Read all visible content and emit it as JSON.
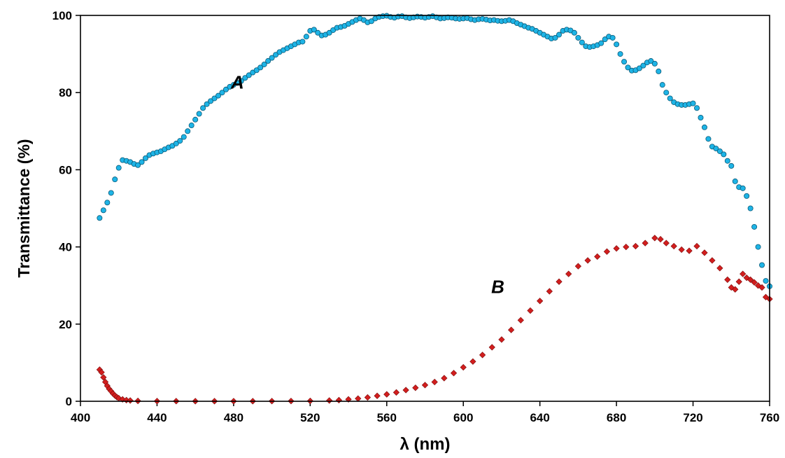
{
  "chart_data": {
    "type": "scatter",
    "title": "",
    "xlabel": "λ (nm)",
    "ylabel": "Transmittance (%)",
    "xlim": [
      400,
      760
    ],
    "ylim": [
      0,
      100
    ],
    "x_ticks": [
      "400",
      "440",
      "480",
      "520",
      "560",
      "600",
      "640",
      "680",
      "720",
      "760"
    ],
    "y_ticks": [
      "0",
      "20",
      "40",
      "60",
      "80",
      "100"
    ],
    "grid": false,
    "legend": "none",
    "series": [
      {
        "name": "A",
        "marker": "circle",
        "color": "#1EB4E6",
        "edge_color": "#0A5A78",
        "points": [
          [
            410,
            47.5
          ],
          [
            412,
            49.5
          ],
          [
            414,
            51.5
          ],
          [
            416,
            54
          ],
          [
            418,
            57.5
          ],
          [
            420,
            60.5
          ],
          [
            422,
            62.5
          ],
          [
            424,
            62.3
          ],
          [
            426,
            62
          ],
          [
            428,
            61.5
          ],
          [
            430,
            61.2
          ],
          [
            432,
            62
          ],
          [
            434,
            63
          ],
          [
            436,
            63.8
          ],
          [
            438,
            64.2
          ],
          [
            440,
            64.5
          ],
          [
            442,
            64.8
          ],
          [
            444,
            65.3
          ],
          [
            446,
            65.8
          ],
          [
            448,
            66.2
          ],
          [
            450,
            66.8
          ],
          [
            452,
            67.5
          ],
          [
            454,
            68.5
          ],
          [
            456,
            70
          ],
          [
            458,
            71.5
          ],
          [
            460,
            73
          ],
          [
            462,
            74.5
          ],
          [
            464,
            76
          ],
          [
            466,
            77
          ],
          [
            468,
            77.8
          ],
          [
            470,
            78.5
          ],
          [
            472,
            79.2
          ],
          [
            474,
            80
          ],
          [
            476,
            80.8
          ],
          [
            478,
            81.5
          ],
          [
            480,
            82
          ],
          [
            482,
            82.5
          ],
          [
            484,
            83
          ],
          [
            486,
            83.8
          ],
          [
            488,
            84.5
          ],
          [
            490,
            85.2
          ],
          [
            492,
            85.8
          ],
          [
            494,
            86.5
          ],
          [
            496,
            87.3
          ],
          [
            498,
            88.2
          ],
          [
            500,
            89
          ],
          [
            502,
            89.8
          ],
          [
            504,
            90.5
          ],
          [
            506,
            91
          ],
          [
            508,
            91.5
          ],
          [
            510,
            92
          ],
          [
            512,
            92.5
          ],
          [
            514,
            93
          ],
          [
            516,
            93.2
          ],
          [
            518,
            94.5
          ],
          [
            520,
            96
          ],
          [
            522,
            96.3
          ],
          [
            524,
            95.5
          ],
          [
            526,
            94.8
          ],
          [
            528,
            95
          ],
          [
            530,
            95.5
          ],
          [
            532,
            96.2
          ],
          [
            534,
            96.8
          ],
          [
            536,
            97
          ],
          [
            538,
            97.3
          ],
          [
            540,
            97.8
          ],
          [
            542,
            98.3
          ],
          [
            544,
            98.8
          ],
          [
            546,
            99.2
          ],
          [
            548,
            98.8
          ],
          [
            550,
            98.2
          ],
          [
            552,
            98.5
          ],
          [
            554,
            99.2
          ],
          [
            556,
            99.6
          ],
          [
            558,
            99.8
          ],
          [
            560,
            99.9
          ],
          [
            562,
            99.6
          ],
          [
            564,
            99.4
          ],
          [
            566,
            99.7
          ],
          [
            568,
            99.8
          ],
          [
            570,
            99.5
          ],
          [
            572,
            99.3
          ],
          [
            574,
            99.5
          ],
          [
            576,
            99.7
          ],
          [
            578,
            99.6
          ],
          [
            580,
            99.4
          ],
          [
            582,
            99.6
          ],
          [
            584,
            99.8
          ],
          [
            586,
            99.5
          ],
          [
            588,
            99.2
          ],
          [
            590,
            99.3
          ],
          [
            592,
            99.5
          ],
          [
            594,
            99.4
          ],
          [
            596,
            99.2
          ],
          [
            598,
            99.1
          ],
          [
            600,
            99.2
          ],
          [
            602,
            99.3
          ],
          [
            604,
            99
          ],
          [
            606,
            98.8
          ],
          [
            608,
            99
          ],
          [
            610,
            99.1
          ],
          [
            612,
            98.9
          ],
          [
            614,
            98.7
          ],
          [
            616,
            98.8
          ],
          [
            618,
            98.6
          ],
          [
            620,
            98.5
          ],
          [
            622,
            98.6
          ],
          [
            624,
            98.8
          ],
          [
            626,
            98.5
          ],
          [
            628,
            98
          ],
          [
            630,
            97.6
          ],
          [
            632,
            97.2
          ],
          [
            634,
            96.8
          ],
          [
            636,
            96.5
          ],
          [
            638,
            96
          ],
          [
            640,
            95.5
          ],
          [
            642,
            95
          ],
          [
            644,
            94.5
          ],
          [
            646,
            94
          ],
          [
            648,
            94.2
          ],
          [
            650,
            95
          ],
          [
            652,
            96
          ],
          [
            654,
            96.3
          ],
          [
            656,
            96.1
          ],
          [
            658,
            95.5
          ],
          [
            660,
            94.2
          ],
          [
            662,
            93
          ],
          [
            664,
            92
          ],
          [
            666,
            91.8
          ],
          [
            668,
            92
          ],
          [
            670,
            92.3
          ],
          [
            672,
            92.8
          ],
          [
            674,
            93.8
          ],
          [
            676,
            94.5
          ],
          [
            678,
            94.2
          ],
          [
            680,
            92.5
          ],
          [
            682,
            90
          ],
          [
            684,
            88
          ],
          [
            686,
            86.5
          ],
          [
            688,
            85.7
          ],
          [
            690,
            85.8
          ],
          [
            692,
            86.3
          ],
          [
            694,
            87
          ],
          [
            696,
            87.8
          ],
          [
            698,
            88.2
          ],
          [
            700,
            87.5
          ],
          [
            702,
            85.5
          ],
          [
            704,
            82
          ],
          [
            706,
            80
          ],
          [
            708,
            78.5
          ],
          [
            710,
            77.5
          ],
          [
            712,
            77
          ],
          [
            714,
            76.8
          ],
          [
            716,
            76.8
          ],
          [
            718,
            77
          ],
          [
            720,
            77.2
          ],
          [
            722,
            76
          ],
          [
            724,
            73.5
          ],
          [
            726,
            71
          ],
          [
            728,
            68
          ],
          [
            730,
            66
          ],
          [
            732,
            65.5
          ],
          [
            734,
            64.8
          ],
          [
            736,
            64
          ],
          [
            738,
            62.3
          ],
          [
            740,
            61
          ],
          [
            742,
            57
          ],
          [
            744,
            55.5
          ],
          [
            746,
            55.2
          ],
          [
            748,
            53.2
          ],
          [
            750,
            50
          ],
          [
            752,
            45.2
          ],
          [
            754,
            40
          ],
          [
            756,
            35.3
          ],
          [
            758,
            31.2
          ],
          [
            760,
            29.8
          ]
        ]
      },
      {
        "name": "B",
        "marker": "diamond",
        "color": "#D21E1E",
        "edge_color": "#7A0A0A",
        "points": [
          [
            410,
            8.2
          ],
          [
            411,
            7.5
          ],
          [
            412,
            6.2
          ],
          [
            413,
            5
          ],
          [
            414,
            4
          ],
          [
            415,
            3.2
          ],
          [
            416,
            2.6
          ],
          [
            417,
            2
          ],
          [
            418,
            1.5
          ],
          [
            419,
            1.1
          ],
          [
            420,
            0.8
          ],
          [
            422,
            0.5
          ],
          [
            424,
            0.3
          ],
          [
            426,
            0.2
          ],
          [
            430,
            0.1
          ],
          [
            440,
            0.05
          ],
          [
            450,
            0.04
          ],
          [
            460,
            0.03
          ],
          [
            470,
            0.03
          ],
          [
            480,
            0.03
          ],
          [
            490,
            0.03
          ],
          [
            500,
            0.04
          ],
          [
            510,
            0.06
          ],
          [
            520,
            0.1
          ],
          [
            530,
            0.2
          ],
          [
            535,
            0.3
          ],
          [
            540,
            0.5
          ],
          [
            545,
            0.7
          ],
          [
            550,
            1
          ],
          [
            555,
            1.4
          ],
          [
            560,
            1.8
          ],
          [
            565,
            2.3
          ],
          [
            570,
            2.9
          ],
          [
            575,
            3.5
          ],
          [
            580,
            4.2
          ],
          [
            585,
            5
          ],
          [
            590,
            6
          ],
          [
            595,
            7.3
          ],
          [
            600,
            8.8
          ],
          [
            605,
            10.3
          ],
          [
            610,
            12
          ],
          [
            615,
            14
          ],
          [
            620,
            16
          ],
          [
            625,
            18.5
          ],
          [
            630,
            21
          ],
          [
            635,
            23.5
          ],
          [
            640,
            26
          ],
          [
            645,
            28.5
          ],
          [
            650,
            31
          ],
          [
            655,
            33
          ],
          [
            660,
            35
          ],
          [
            665,
            36.5
          ],
          [
            670,
            37.5
          ],
          [
            675,
            38.8
          ],
          [
            680,
            39.6
          ],
          [
            685,
            40
          ],
          [
            690,
            40.2
          ],
          [
            695,
            41
          ],
          [
            700,
            42.3
          ],
          [
            703,
            42
          ],
          [
            706,
            41
          ],
          [
            710,
            40.2
          ],
          [
            714,
            39.3
          ],
          [
            718,
            39
          ],
          [
            722,
            40.2
          ],
          [
            726,
            38.5
          ],
          [
            730,
            36.5
          ],
          [
            734,
            34.5
          ],
          [
            738,
            31.5
          ],
          [
            740,
            29.5
          ],
          [
            742,
            29
          ],
          [
            744,
            31
          ],
          [
            746,
            33
          ],
          [
            748,
            32
          ],
          [
            750,
            31.5
          ],
          [
            752,
            30.8
          ],
          [
            754,
            30
          ],
          [
            756,
            29.5
          ],
          [
            758,
            27
          ],
          [
            760,
            26.5
          ]
        ]
      }
    ],
    "annotations": [
      {
        "text": "A",
        "x": 482,
        "y": 81
      },
      {
        "text": "B",
        "x": 618,
        "y": 28
      }
    ]
  }
}
